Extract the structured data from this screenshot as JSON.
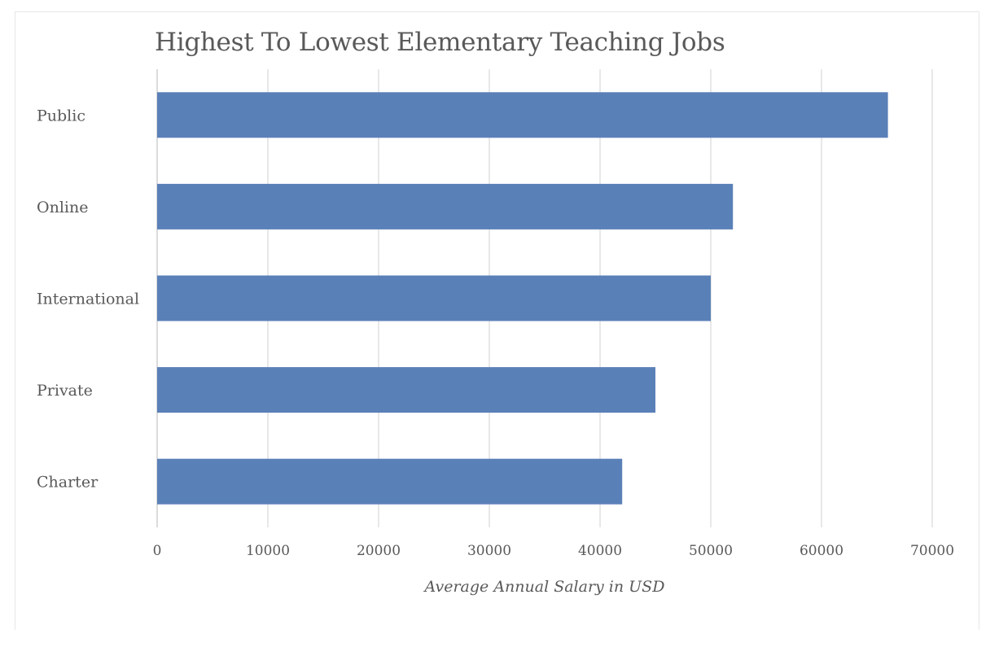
{
  "chart_data": {
    "type": "bar",
    "orientation": "horizontal",
    "title": "Highest To Lowest Elementary Teaching Jobs",
    "categories": [
      "Public",
      "Online",
      "International",
      "Private",
      "Charter"
    ],
    "values": [
      66000,
      52000,
      50000,
      45000,
      42000
    ],
    "xlabel": "Average Annual Salary in USD",
    "ylabel": "",
    "xlim": [
      0,
      70000
    ],
    "xticks": [
      "0",
      "10000",
      "20000",
      "30000",
      "40000",
      "50000",
      "60000",
      "70000"
    ],
    "grid": true,
    "legend": "none",
    "bar_color": "#5a80b8"
  }
}
